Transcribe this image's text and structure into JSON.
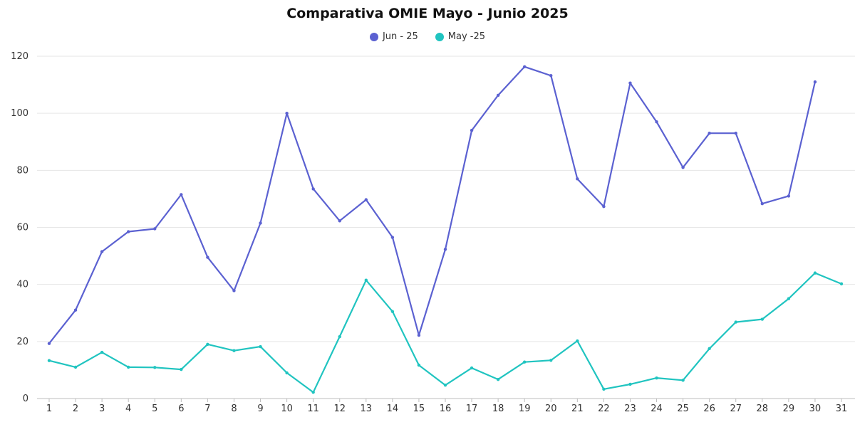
{
  "chart_data": {
    "type": "line",
    "title": "Comparativa OMIE Mayo - Junio 2025",
    "xlabel": "",
    "ylabel": "",
    "categories": [
      "1",
      "2",
      "3",
      "4",
      "5",
      "6",
      "7",
      "8",
      "9",
      "10",
      "11",
      "12",
      "13",
      "14",
      "15",
      "16",
      "17",
      "18",
      "19",
      "20",
      "21",
      "22",
      "23",
      "24",
      "25",
      "26",
      "27",
      "28",
      "29",
      "30",
      "31"
    ],
    "yticks": [
      "0",
      "20",
      "40",
      "60",
      "80",
      "100",
      "120"
    ],
    "ylim": [
      0,
      120
    ],
    "grid": true,
    "legend_position": "top-center",
    "series": [
      {
        "name": "Jun - 25",
        "color": "#5B61D1",
        "values": [
          19.3,
          31.0,
          51.5,
          58.5,
          59.5,
          71.5,
          49.5,
          37.8,
          61.5,
          100.0,
          73.5,
          62.3,
          69.7,
          56.5,
          22.2,
          52.3,
          94.0,
          106.3,
          116.3,
          113.2,
          77.0,
          67.3,
          110.6,
          97.0,
          81.0,
          93.0,
          93.0,
          68.3,
          71.0,
          111.0,
          null
        ]
      },
      {
        "name": "May -25",
        "color": "#20C4C0",
        "values": [
          13.3,
          11.0,
          16.2,
          11.0,
          10.9,
          10.2,
          19.0,
          16.8,
          18.2,
          9.0,
          2.2,
          21.7,
          41.5,
          30.5,
          11.7,
          4.7,
          10.7,
          6.7,
          12.8,
          13.4,
          20.2,
          3.3,
          5.0,
          7.2,
          6.4,
          17.5,
          26.8,
          27.8,
          35.0,
          44.0,
          40.2
        ]
      }
    ]
  }
}
